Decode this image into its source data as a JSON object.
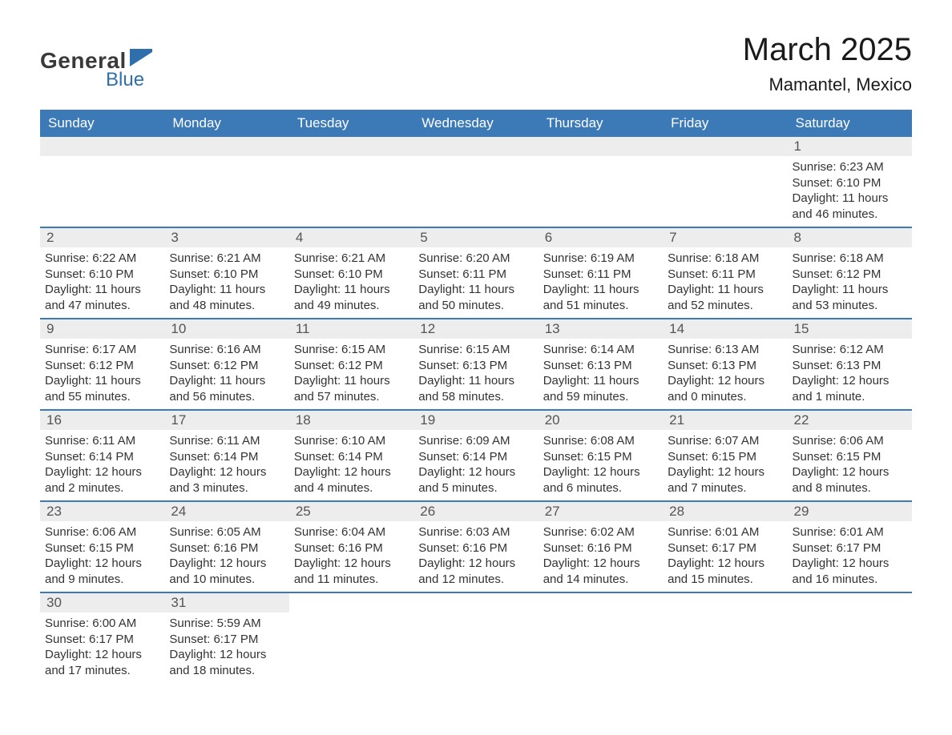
{
  "logo": {
    "text1": "General",
    "text2": "Blue"
  },
  "header": {
    "title": "March 2025",
    "location": "Mamantel, Mexico"
  },
  "colors": {
    "header_bg": "#3b79b7",
    "header_text": "#ffffff",
    "daynum_bg": "#ededed",
    "daynum_text": "#555555",
    "body_text": "#333333",
    "row_border": "#3b79b7",
    "logo_general": "#3a3a3a",
    "logo_blue": "#2f6fab"
  },
  "days_of_week": [
    "Sunday",
    "Monday",
    "Tuesday",
    "Wednesday",
    "Thursday",
    "Friday",
    "Saturday"
  ],
  "weeks": [
    [
      {
        "num": "",
        "sunrise": "",
        "sunset": "",
        "daylight": ""
      },
      {
        "num": "",
        "sunrise": "",
        "sunset": "",
        "daylight": ""
      },
      {
        "num": "",
        "sunrise": "",
        "sunset": "",
        "daylight": ""
      },
      {
        "num": "",
        "sunrise": "",
        "sunset": "",
        "daylight": ""
      },
      {
        "num": "",
        "sunrise": "",
        "sunset": "",
        "daylight": ""
      },
      {
        "num": "",
        "sunrise": "",
        "sunset": "",
        "daylight": ""
      },
      {
        "num": "1",
        "sunrise": "Sunrise: 6:23 AM",
        "sunset": "Sunset: 6:10 PM",
        "daylight": "Daylight: 11 hours and 46 minutes."
      }
    ],
    [
      {
        "num": "2",
        "sunrise": "Sunrise: 6:22 AM",
        "sunset": "Sunset: 6:10 PM",
        "daylight": "Daylight: 11 hours and 47 minutes."
      },
      {
        "num": "3",
        "sunrise": "Sunrise: 6:21 AM",
        "sunset": "Sunset: 6:10 PM",
        "daylight": "Daylight: 11 hours and 48 minutes."
      },
      {
        "num": "4",
        "sunrise": "Sunrise: 6:21 AM",
        "sunset": "Sunset: 6:10 PM",
        "daylight": "Daylight: 11 hours and 49 minutes."
      },
      {
        "num": "5",
        "sunrise": "Sunrise: 6:20 AM",
        "sunset": "Sunset: 6:11 PM",
        "daylight": "Daylight: 11 hours and 50 minutes."
      },
      {
        "num": "6",
        "sunrise": "Sunrise: 6:19 AM",
        "sunset": "Sunset: 6:11 PM",
        "daylight": "Daylight: 11 hours and 51 minutes."
      },
      {
        "num": "7",
        "sunrise": "Sunrise: 6:18 AM",
        "sunset": "Sunset: 6:11 PM",
        "daylight": "Daylight: 11 hours and 52 minutes."
      },
      {
        "num": "8",
        "sunrise": "Sunrise: 6:18 AM",
        "sunset": "Sunset: 6:12 PM",
        "daylight": "Daylight: 11 hours and 53 minutes."
      }
    ],
    [
      {
        "num": "9",
        "sunrise": "Sunrise: 6:17 AM",
        "sunset": "Sunset: 6:12 PM",
        "daylight": "Daylight: 11 hours and 55 minutes."
      },
      {
        "num": "10",
        "sunrise": "Sunrise: 6:16 AM",
        "sunset": "Sunset: 6:12 PM",
        "daylight": "Daylight: 11 hours and 56 minutes."
      },
      {
        "num": "11",
        "sunrise": "Sunrise: 6:15 AM",
        "sunset": "Sunset: 6:12 PM",
        "daylight": "Daylight: 11 hours and 57 minutes."
      },
      {
        "num": "12",
        "sunrise": "Sunrise: 6:15 AM",
        "sunset": "Sunset: 6:13 PM",
        "daylight": "Daylight: 11 hours and 58 minutes."
      },
      {
        "num": "13",
        "sunrise": "Sunrise: 6:14 AM",
        "sunset": "Sunset: 6:13 PM",
        "daylight": "Daylight: 11 hours and 59 minutes."
      },
      {
        "num": "14",
        "sunrise": "Sunrise: 6:13 AM",
        "sunset": "Sunset: 6:13 PM",
        "daylight": "Daylight: 12 hours and 0 minutes."
      },
      {
        "num": "15",
        "sunrise": "Sunrise: 6:12 AM",
        "sunset": "Sunset: 6:13 PM",
        "daylight": "Daylight: 12 hours and 1 minute."
      }
    ],
    [
      {
        "num": "16",
        "sunrise": "Sunrise: 6:11 AM",
        "sunset": "Sunset: 6:14 PM",
        "daylight": "Daylight: 12 hours and 2 minutes."
      },
      {
        "num": "17",
        "sunrise": "Sunrise: 6:11 AM",
        "sunset": "Sunset: 6:14 PM",
        "daylight": "Daylight: 12 hours and 3 minutes."
      },
      {
        "num": "18",
        "sunrise": "Sunrise: 6:10 AM",
        "sunset": "Sunset: 6:14 PM",
        "daylight": "Daylight: 12 hours and 4 minutes."
      },
      {
        "num": "19",
        "sunrise": "Sunrise: 6:09 AM",
        "sunset": "Sunset: 6:14 PM",
        "daylight": "Daylight: 12 hours and 5 minutes."
      },
      {
        "num": "20",
        "sunrise": "Sunrise: 6:08 AM",
        "sunset": "Sunset: 6:15 PM",
        "daylight": "Daylight: 12 hours and 6 minutes."
      },
      {
        "num": "21",
        "sunrise": "Sunrise: 6:07 AM",
        "sunset": "Sunset: 6:15 PM",
        "daylight": "Daylight: 12 hours and 7 minutes."
      },
      {
        "num": "22",
        "sunrise": "Sunrise: 6:06 AM",
        "sunset": "Sunset: 6:15 PM",
        "daylight": "Daylight: 12 hours and 8 minutes."
      }
    ],
    [
      {
        "num": "23",
        "sunrise": "Sunrise: 6:06 AM",
        "sunset": "Sunset: 6:15 PM",
        "daylight": "Daylight: 12 hours and 9 minutes."
      },
      {
        "num": "24",
        "sunrise": "Sunrise: 6:05 AM",
        "sunset": "Sunset: 6:16 PM",
        "daylight": "Daylight: 12 hours and 10 minutes."
      },
      {
        "num": "25",
        "sunrise": "Sunrise: 6:04 AM",
        "sunset": "Sunset: 6:16 PM",
        "daylight": "Daylight: 12 hours and 11 minutes."
      },
      {
        "num": "26",
        "sunrise": "Sunrise: 6:03 AM",
        "sunset": "Sunset: 6:16 PM",
        "daylight": "Daylight: 12 hours and 12 minutes."
      },
      {
        "num": "27",
        "sunrise": "Sunrise: 6:02 AM",
        "sunset": "Sunset: 6:16 PM",
        "daylight": "Daylight: 12 hours and 14 minutes."
      },
      {
        "num": "28",
        "sunrise": "Sunrise: 6:01 AM",
        "sunset": "Sunset: 6:17 PM",
        "daylight": "Daylight: 12 hours and 15 minutes."
      },
      {
        "num": "29",
        "sunrise": "Sunrise: 6:01 AM",
        "sunset": "Sunset: 6:17 PM",
        "daylight": "Daylight: 12 hours and 16 minutes."
      }
    ],
    [
      {
        "num": "30",
        "sunrise": "Sunrise: 6:00 AM",
        "sunset": "Sunset: 6:17 PM",
        "daylight": "Daylight: 12 hours and 17 minutes."
      },
      {
        "num": "31",
        "sunrise": "Sunrise: 5:59 AM",
        "sunset": "Sunset: 6:17 PM",
        "daylight": "Daylight: 12 hours and 18 minutes."
      },
      {
        "num": "",
        "sunrise": "",
        "sunset": "",
        "daylight": ""
      },
      {
        "num": "",
        "sunrise": "",
        "sunset": "",
        "daylight": ""
      },
      {
        "num": "",
        "sunrise": "",
        "sunset": "",
        "daylight": ""
      },
      {
        "num": "",
        "sunrise": "",
        "sunset": "",
        "daylight": ""
      },
      {
        "num": "",
        "sunrise": "",
        "sunset": "",
        "daylight": ""
      }
    ]
  ]
}
